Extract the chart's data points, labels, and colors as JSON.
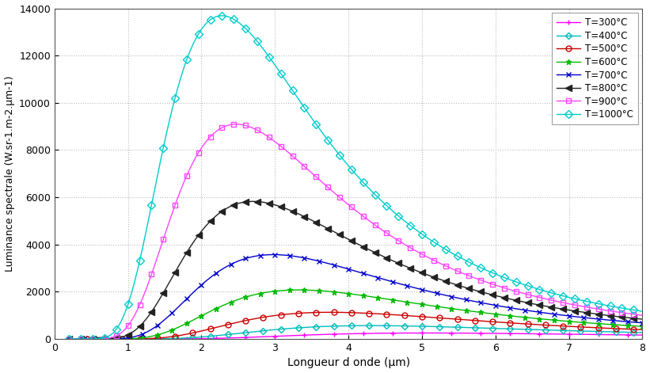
{
  "title": "",
  "xlabel": "Longueur d onde (μm)",
  "ylabel": "Luminance spectrale (W.sr-1.m-2.μm-1)",
  "xlim": [
    0,
    8
  ],
  "ylim": [
    0,
    14000
  ],
  "yticks": [
    0,
    2000,
    4000,
    6000,
    8000,
    10000,
    12000,
    14000
  ],
  "xticks": [
    0,
    1,
    2,
    3,
    4,
    5,
    6,
    7,
    8
  ],
  "temperatures_C": [
    300,
    400,
    500,
    600,
    700,
    800,
    900,
    1000
  ],
  "colors": [
    "#FF00FF",
    "#00BBBB",
    "#CC0000",
    "#00BB00",
    "#0000CC",
    "#222222",
    "#FF44FF",
    "#00CCCC"
  ],
  "markers": [
    "+",
    "D",
    "o",
    "*",
    "x",
    "<",
    "s",
    "D"
  ],
  "marker_sizes": [
    4,
    4,
    5,
    5,
    5,
    6,
    5,
    5
  ],
  "marker_every": [
    10,
    6,
    6,
    5,
    5,
    4,
    4,
    4
  ],
  "legend_labels": [
    "T=300°C",
    "T=400°C",
    "T=500°C",
    "T=600°C",
    "T=700°C",
    "T=800°C",
    "T=900°C",
    "T=1000°C"
  ],
  "background_color": "#ffffff",
  "grid_color": "#aaaaaa",
  "lam_min": 0.2,
  "lam_max": 8.0,
  "lam_step": 0.04
}
